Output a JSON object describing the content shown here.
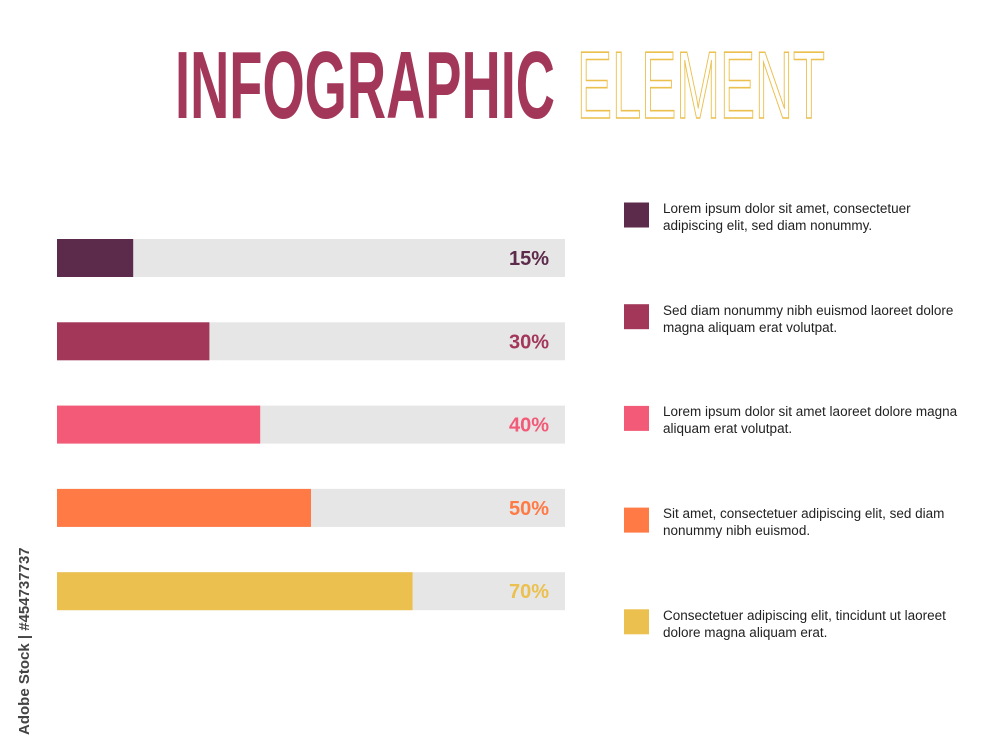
{
  "chart_data": {
    "type": "bar",
    "orientation": "horizontal",
    "title": [
      "INFOGRAPHIC",
      "ELEMENT"
    ],
    "title_colors": [
      "#a3375a",
      "#ecc04e"
    ],
    "categories": [
      "Lorem ipsum dolor sit amet, consectetuer adipiscing elit, sed diam nonummy.",
      "Sed diam nonummy nibh euismod laoreet dolore magna aliquam erat volutpat.",
      "Lorem ipsum dolor sit amet laoreet dolore magna aliquam erat volutpat.",
      "Sit amet, consectetuer adipiscing elit, sed diam nonummy nibh euismod.",
      "Consectetuer adipiscing elit, tincidunt ut laoreet dolore magna aliquam erat."
    ],
    "values": [
      15,
      30,
      40,
      50,
      70
    ],
    "value_labels": [
      "15%",
      "30%",
      "40%",
      "50%",
      "70%"
    ],
    "colors": [
      "#5c2a4a",
      "#a3375a",
      "#f25a78",
      "#ff7a45",
      "#ecc04e"
    ],
    "track_color": "#e6e6e6",
    "xlim": [
      0,
      100
    ],
    "watermark": "Adobe Stock | #454737737"
  }
}
